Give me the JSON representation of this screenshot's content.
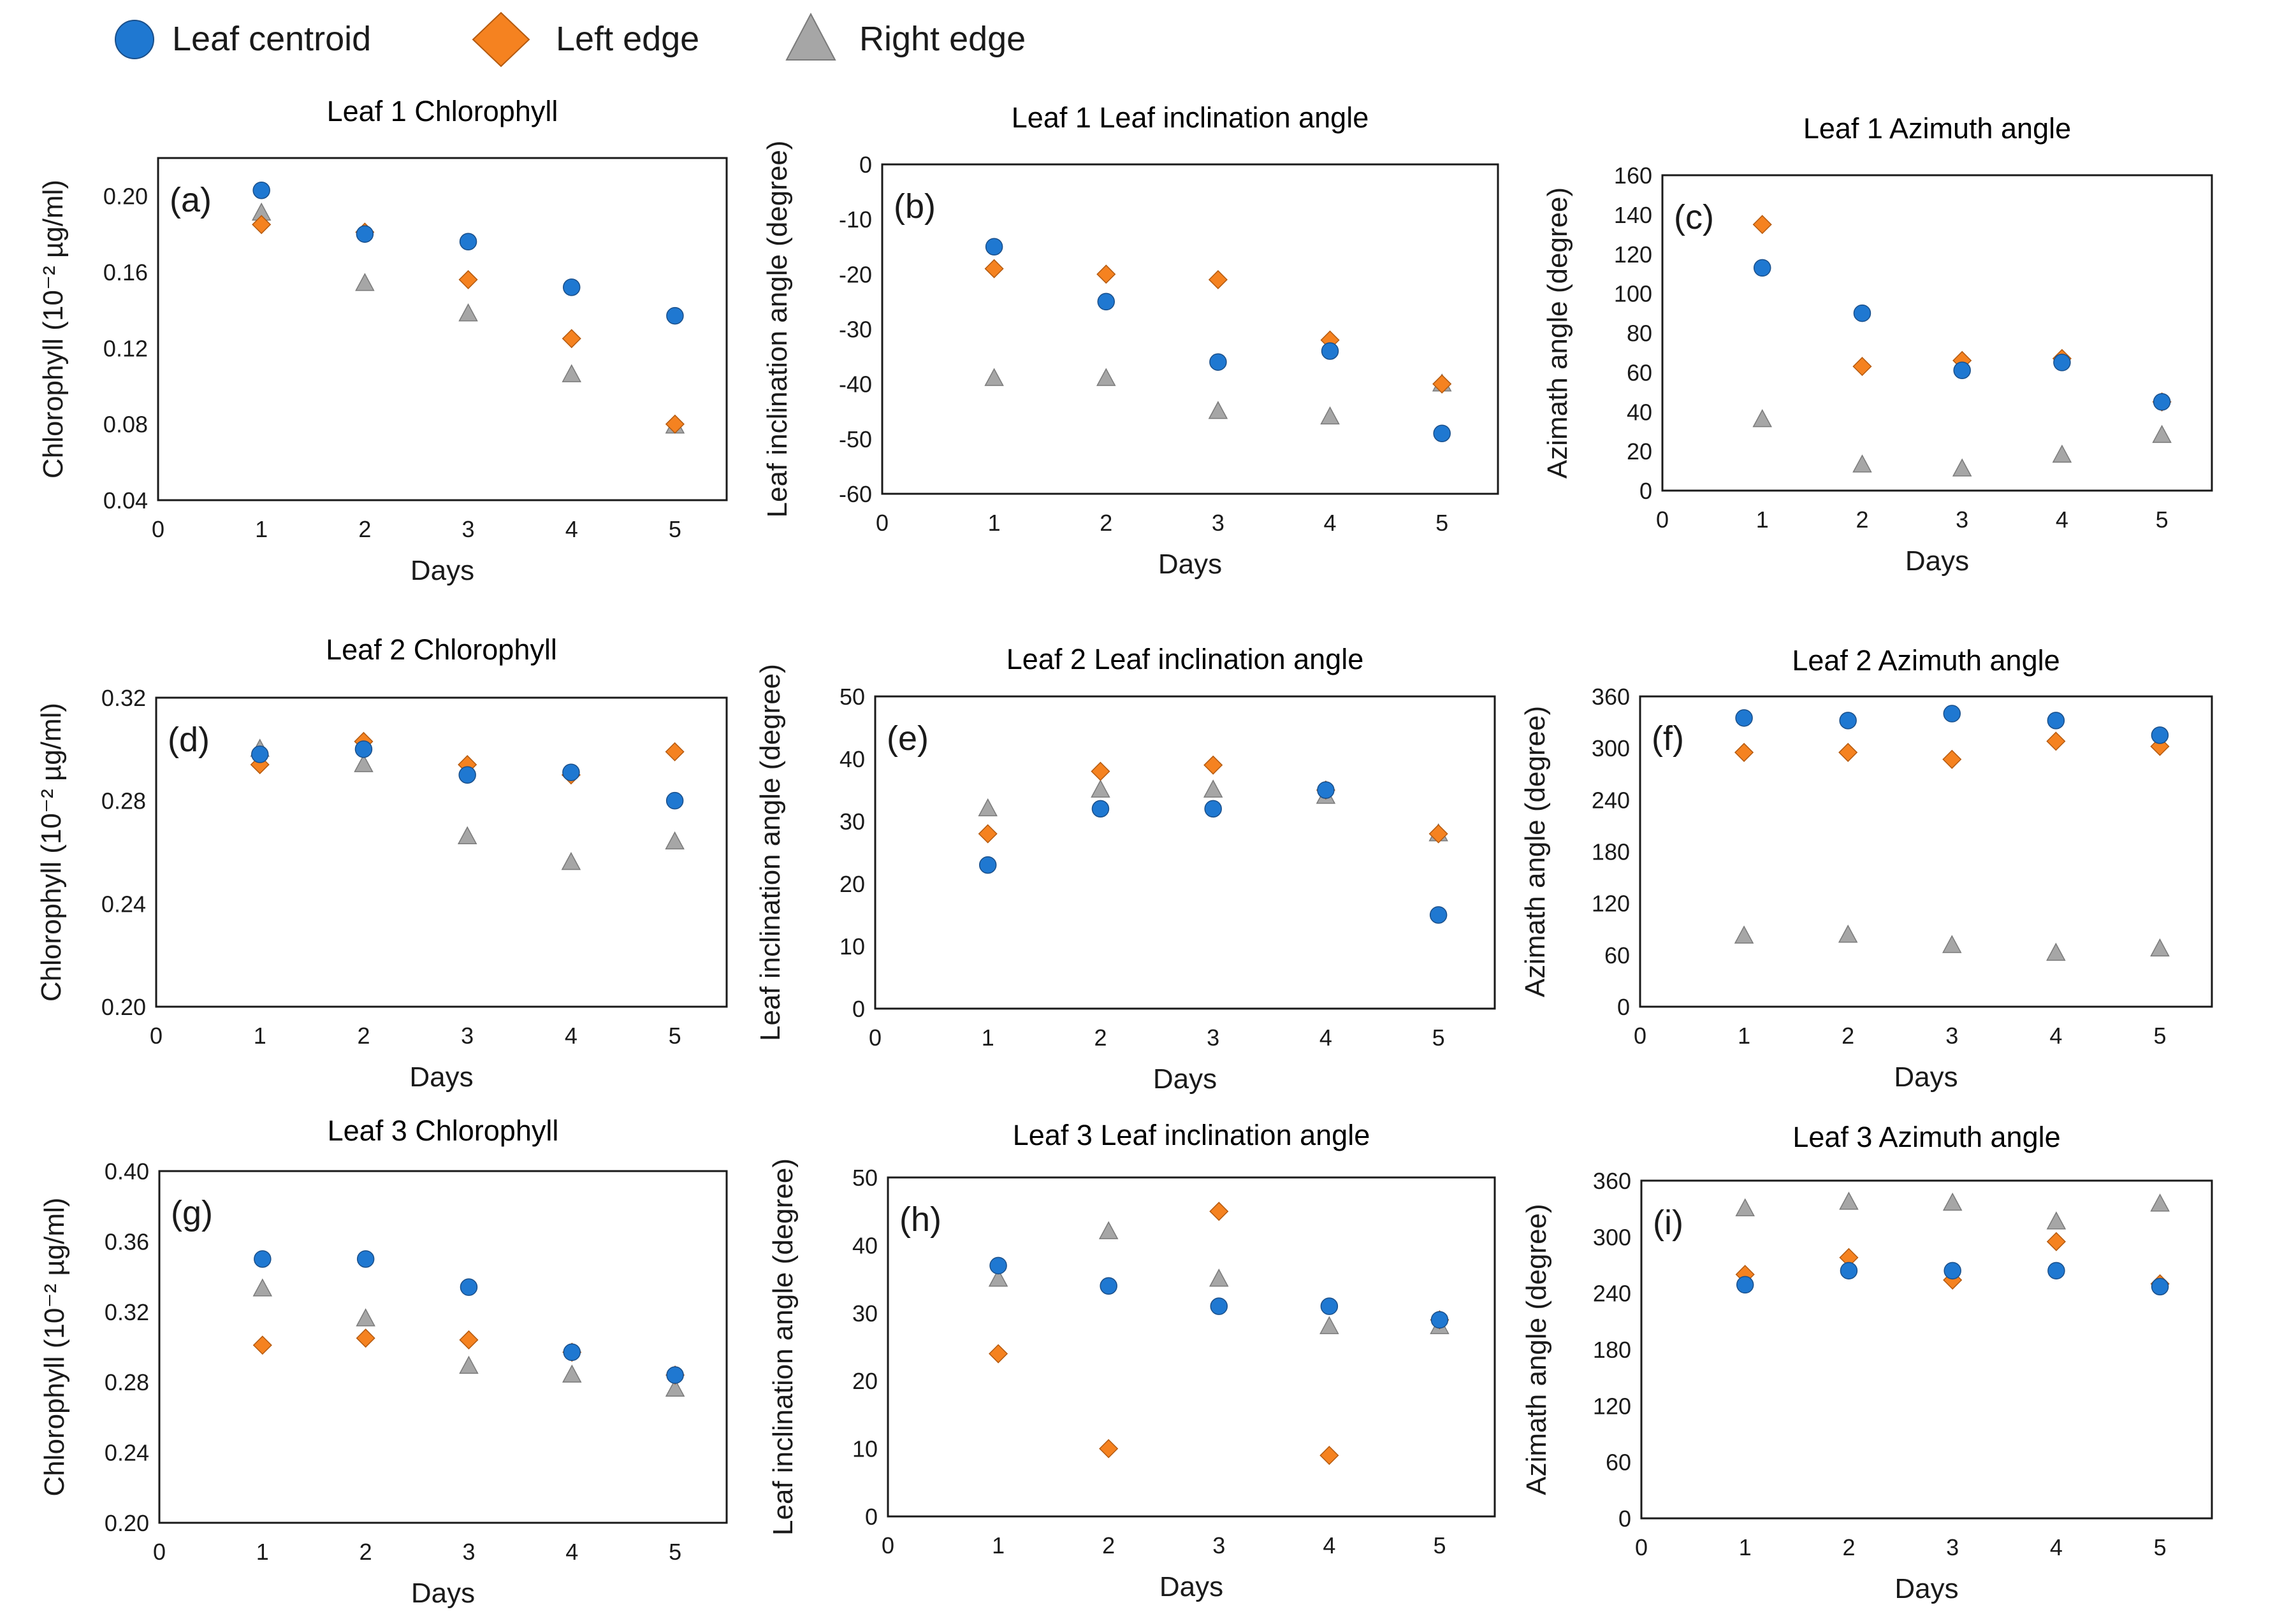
{
  "legend": {
    "centroid": {
      "label": "Leaf centroid",
      "color": "#1f78d1",
      "icon": "circle-icon"
    },
    "left": {
      "label": "Left edge",
      "color": "#f58220",
      "icon": "diamond-icon"
    },
    "right": {
      "label": "Right edge",
      "color": "#a6a6a6",
      "icon": "triangle-icon"
    }
  },
  "chart_data": [
    {
      "type": "scatter",
      "panel": "(a)",
      "title": "Leaf 1 Chlorophyll",
      "xlabel": "Days",
      "ylabel": "Chlorophyll (10⁻² µg/ml)",
      "xlim": [
        0,
        5.5
      ],
      "ylim": [
        0.04,
        0.22
      ],
      "xticks": [
        "0",
        "1",
        "2",
        "3",
        "4",
        "5"
      ],
      "yticks": [
        "0.04",
        "0.08",
        "0.12",
        "0.16",
        "0.20"
      ],
      "x": [
        1,
        2,
        3,
        4,
        5
      ],
      "series": [
        {
          "name": "Leaf centroid",
          "values": [
            0.203,
            0.18,
            0.176,
            0.152,
            0.137
          ]
        },
        {
          "name": "Left edge",
          "values": [
            0.185,
            0.181,
            0.156,
            0.125,
            0.08
          ]
        },
        {
          "name": "Right edge",
          "values": [
            0.191,
            0.154,
            0.138,
            0.106,
            0.079
          ]
        }
      ]
    },
    {
      "type": "scatter",
      "panel": "(b)",
      "title": "Leaf 1 Leaf inclination angle",
      "xlabel": "Days",
      "ylabel": "Leaf inclination  angle (degree)",
      "xlim": [
        0,
        5.5
      ],
      "ylim": [
        -60,
        0
      ],
      "xticks": [
        "0",
        "1",
        "2",
        "3",
        "4",
        "5"
      ],
      "yticks": [
        "-60",
        "-50",
        "-40",
        "-30",
        "-20",
        "-10",
        "0"
      ],
      "x": [
        1,
        2,
        3,
        4,
        5
      ],
      "series": [
        {
          "name": "Leaf centroid",
          "values": [
            -15,
            -25,
            -36,
            -34,
            -49
          ]
        },
        {
          "name": "Left edge",
          "values": [
            -19,
            -20,
            -21,
            -32,
            -40
          ]
        },
        {
          "name": "Right edge",
          "values": [
            -39,
            -39,
            -45,
            -46,
            -40
          ]
        }
      ]
    },
    {
      "type": "scatter",
      "panel": "(c)",
      "title": "Leaf 1 Azimuth angle",
      "xlabel": "Days",
      "ylabel": "Azimath  angle (degree)",
      "xlim": [
        0,
        5.5
      ],
      "ylim": [
        0,
        160
      ],
      "xticks": [
        "0",
        "1",
        "2",
        "3",
        "4",
        "5"
      ],
      "yticks": [
        "0",
        "20",
        "40",
        "60",
        "80",
        "100",
        "120",
        "140",
        "160"
      ],
      "x": [
        1,
        2,
        3,
        4,
        5
      ],
      "series": [
        {
          "name": "Leaf centroid",
          "values": [
            113,
            90,
            61,
            65,
            45
          ]
        },
        {
          "name": "Left edge",
          "values": [
            135,
            63,
            66,
            67,
            45
          ]
        },
        {
          "name": "Right edge",
          "values": [
            36,
            13,
            11,
            18,
            28
          ]
        }
      ]
    },
    {
      "type": "scatter",
      "panel": "(d)",
      "title": "Leaf 2 Chlorophyll",
      "xlabel": "Days",
      "ylabel": "Chlorophyll (10⁻² µg/ml)",
      "xlim": [
        0,
        5.5
      ],
      "ylim": [
        0.2,
        0.32
      ],
      "xticks": [
        "0",
        "1",
        "2",
        "3",
        "4",
        "5"
      ],
      "yticks": [
        "0.20",
        "0.24",
        "0.28",
        "0.32"
      ],
      "x": [
        1,
        2,
        3,
        4,
        5
      ],
      "series": [
        {
          "name": "Leaf centroid",
          "values": [
            0.298,
            0.3,
            0.29,
            0.291,
            0.28
          ]
        },
        {
          "name": "Left edge",
          "values": [
            0.294,
            0.303,
            0.294,
            0.29,
            0.299
          ]
        },
        {
          "name": "Right edge",
          "values": [
            0.3,
            0.294,
            0.266,
            0.256,
            0.264
          ]
        }
      ]
    },
    {
      "type": "scatter",
      "panel": "(e)",
      "title": "Leaf 2 Leaf inclination angle",
      "xlabel": "Days",
      "ylabel": "Leaf inclination  angle (degree)",
      "xlim": [
        0,
        5.5
      ],
      "ylim": [
        0,
        50
      ],
      "xticks": [
        "0",
        "1",
        "2",
        "3",
        "4",
        "5"
      ],
      "yticks": [
        "0",
        "10",
        "20",
        "30",
        "40",
        "50"
      ],
      "x": [
        1,
        2,
        3,
        4,
        5
      ],
      "series": [
        {
          "name": "Leaf centroid",
          "values": [
            23,
            32,
            32,
            35,
            15
          ]
        },
        {
          "name": "Left edge",
          "values": [
            28,
            38,
            39,
            35,
            28
          ]
        },
        {
          "name": "Right edge",
          "values": [
            32,
            35,
            35,
            34,
            28
          ]
        }
      ]
    },
    {
      "type": "scatter",
      "panel": "(f)",
      "title": "Leaf 2 Azimuth angle",
      "xlabel": "Days",
      "ylabel": "Azimath  angle (degree)",
      "xlim": [
        0,
        5.5
      ],
      "ylim": [
        0,
        360
      ],
      "xticks": [
        "0",
        "1",
        "2",
        "3",
        "4",
        "5"
      ],
      "yticks": [
        "0",
        "60",
        "120",
        "180",
        "240",
        "300",
        "360"
      ],
      "x": [
        1,
        2,
        3,
        4,
        5
      ],
      "series": [
        {
          "name": "Leaf centroid",
          "values": [
            335,
            332,
            340,
            332,
            315
          ]
        },
        {
          "name": "Left edge",
          "values": [
            295,
            295,
            287,
            308,
            302
          ]
        },
        {
          "name": "Right edge",
          "values": [
            82,
            83,
            71,
            62,
            67
          ]
        }
      ]
    },
    {
      "type": "scatter",
      "panel": "(g)",
      "title": "Leaf 3 Chlorophyll",
      "xlabel": "Days",
      "ylabel": "Chlorophyll (10⁻² µg/ml)",
      "xlim": [
        0,
        5.5
      ],
      "ylim": [
        0.2,
        0.4
      ],
      "xticks": [
        "0",
        "1",
        "2",
        "3",
        "4",
        "5"
      ],
      "yticks": [
        "0.20",
        "0.24",
        "0.28",
        "0.32",
        "0.36",
        "0.40"
      ],
      "x": [
        1,
        2,
        3,
        4,
        5
      ],
      "series": [
        {
          "name": "Leaf centroid",
          "values": [
            0.35,
            0.35,
            0.334,
            0.297,
            0.284
          ]
        },
        {
          "name": "Left edge",
          "values": [
            0.301,
            0.305,
            0.304,
            0.297,
            0.284
          ]
        },
        {
          "name": "Right edge",
          "values": [
            0.333,
            0.316,
            0.289,
            0.284,
            0.276
          ]
        }
      ]
    },
    {
      "type": "scatter",
      "panel": "(h)",
      "title": "Leaf 3 Leaf inclination angle",
      "xlabel": "Days",
      "ylabel": "Leaf inclination  angle (degree)",
      "xlim": [
        0,
        5.5
      ],
      "ylim": [
        0,
        50
      ],
      "xticks": [
        "0",
        "1",
        "2",
        "3",
        "4",
        "5"
      ],
      "yticks": [
        "0",
        "10",
        "20",
        "30",
        "40",
        "50"
      ],
      "x": [
        1,
        2,
        3,
        4,
        5
      ],
      "series": [
        {
          "name": "Leaf centroid",
          "values": [
            37,
            34,
            31,
            31,
            29
          ]
        },
        {
          "name": "Left edge",
          "values": [
            24,
            10,
            45,
            9,
            29
          ]
        },
        {
          "name": "Right edge",
          "values": [
            35,
            42,
            35,
            28,
            28
          ]
        }
      ]
    },
    {
      "type": "scatter",
      "panel": "(i)",
      "title": "Leaf 3 Azimuth angle",
      "xlabel": "Days",
      "ylabel": "Azimath  angle (degree)",
      "xlim": [
        0,
        5.5
      ],
      "ylim": [
        0,
        360
      ],
      "xticks": [
        "0",
        "1",
        "2",
        "3",
        "4",
        "5"
      ],
      "yticks": [
        "0",
        "60",
        "120",
        "180",
        "240",
        "300",
        "360"
      ],
      "x": [
        1,
        2,
        3,
        4,
        5
      ],
      "series": [
        {
          "name": "Leaf centroid",
          "values": [
            249,
            264,
            264,
            264,
            247
          ]
        },
        {
          "name": "Left edge",
          "values": [
            260,
            278,
            254,
            295,
            250
          ]
        },
        {
          "name": "Right edge",
          "values": [
            330,
            337,
            336,
            316,
            335
          ]
        }
      ]
    }
  ]
}
